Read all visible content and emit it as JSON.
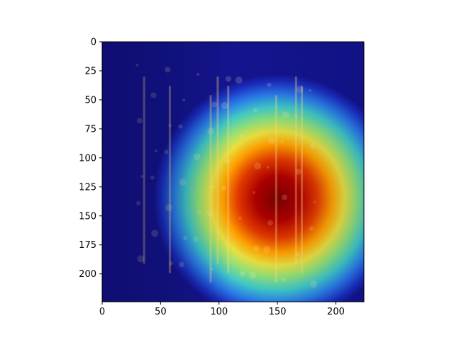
{
  "chart_data": {
    "type": "heatmap",
    "title": "",
    "xlabel": "",
    "ylabel": "",
    "image_size": [
      224,
      224
    ],
    "xlim": [
      0,
      224
    ],
    "ylim": [
      224,
      0
    ],
    "y_inverted": true,
    "grid": false,
    "colormap": "jet",
    "overlay": "class activation heatmap blended over photograph of ornate carved architectural facade",
    "x_ticks": [
      0,
      50,
      100,
      150,
      200
    ],
    "y_ticks": [
      0,
      25,
      50,
      75,
      100,
      125,
      150,
      175,
      200
    ],
    "x_tick_labels": [
      "0",
      "50",
      "100",
      "150",
      "200"
    ],
    "y_tick_labels": [
      "0",
      "25",
      "50",
      "75",
      "100",
      "125",
      "150",
      "175",
      "200"
    ],
    "hotspot": {
      "center_x": 150,
      "center_y": 135,
      "peak_intensity": 1.0
    },
    "colors": {
      "low": "#00008f",
      "mid_low": "#00a6ff",
      "mid": "#7fff7f",
      "mid_high": "#ffc000",
      "high": "#800000"
    }
  }
}
